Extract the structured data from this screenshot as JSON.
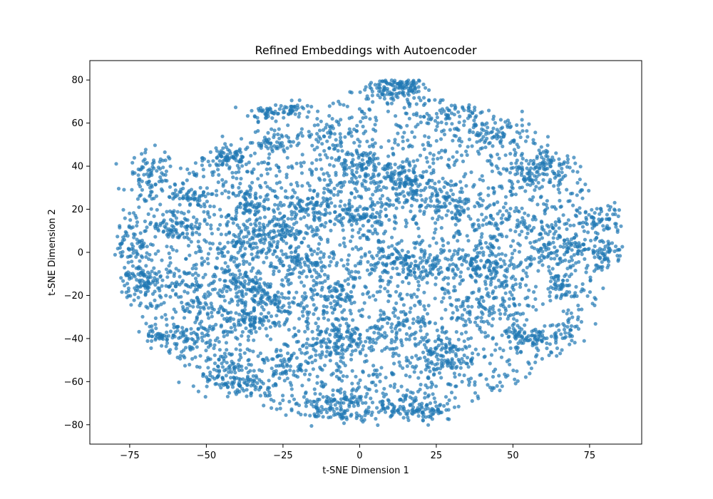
{
  "chart_data": {
    "type": "scatter",
    "title": "Refined Embeddings with Autoencoder",
    "xlabel": "t-SNE Dimension 1",
    "ylabel": "t-SNE Dimension 2",
    "xlim": [
      -88,
      92
    ],
    "ylim": [
      -89,
      89
    ],
    "xticks": [
      -75,
      -50,
      -25,
      0,
      25,
      50,
      75
    ],
    "xtick_labels": [
      "−75",
      "−50",
      "−25",
      "0",
      "25",
      "50",
      "75"
    ],
    "yticks": [
      -80,
      -60,
      -40,
      -20,
      0,
      20,
      40,
      60,
      80
    ],
    "ytick_labels": [
      "−80",
      "−60",
      "−40",
      "−20",
      "0",
      "20",
      "40",
      "60",
      "80"
    ],
    "grid": false,
    "legend": "none",
    "marker_color": "#1f77b4",
    "marker_alpha": 0.7,
    "point_count": 6000,
    "clusters": [
      {
        "center": [
          12,
          77
        ],
        "spread": [
          5,
          3
        ],
        "n": 150
      },
      {
        "center": [
          -30,
          65
        ],
        "spread": [
          3,
          2
        ],
        "n": 40
      },
      {
        "center": [
          -22,
          66
        ],
        "spread": [
          3,
          2
        ],
        "n": 40
      },
      {
        "center": [
          -27,
          52
        ],
        "spread": [
          4,
          3
        ],
        "n": 50
      },
      {
        "center": [
          -10,
          55
        ],
        "spread": [
          4,
          3
        ],
        "n": 40
      },
      {
        "center": [
          -43,
          44
        ],
        "spread": [
          4,
          3
        ],
        "n": 70
      },
      {
        "center": [
          -68,
          35
        ],
        "spread": [
          4,
          6
        ],
        "n": 90
      },
      {
        "center": [
          0,
          38
        ],
        "spread": [
          7,
          5
        ],
        "n": 110
      },
      {
        "center": [
          16,
          32
        ],
        "spread": [
          5,
          6
        ],
        "n": 120
      },
      {
        "center": [
          -37,
          23
        ],
        "spread": [
          3,
          4
        ],
        "n": 60
      },
      {
        "center": [
          -55,
          25
        ],
        "spread": [
          3,
          2
        ],
        "n": 40
      },
      {
        "center": [
          0,
          17
        ],
        "spread": [
          5,
          3
        ],
        "n": 80
      },
      {
        "center": [
          -16,
          20
        ],
        "spread": [
          6,
          5
        ],
        "n": 90
      },
      {
        "center": [
          30,
          22
        ],
        "spread": [
          6,
          6
        ],
        "n": 70
      },
      {
        "center": [
          55,
          35
        ],
        "spread": [
          4,
          3
        ],
        "n": 50
      },
      {
        "center": [
          62,
          40
        ],
        "spread": [
          5,
          3
        ],
        "n": 60
      },
      {
        "center": [
          30,
          64
        ],
        "spread": [
          5,
          3
        ],
        "n": 50
      },
      {
        "center": [
          45,
          55
        ],
        "spread": [
          7,
          4
        ],
        "n": 70
      },
      {
        "center": [
          -70,
          -14
        ],
        "spread": [
          5,
          5
        ],
        "n": 110
      },
      {
        "center": [
          -60,
          13
        ],
        "spread": [
          5,
          4
        ],
        "n": 80
      },
      {
        "center": [
          -38,
          2
        ],
        "spread": [
          6,
          5
        ],
        "n": 100
      },
      {
        "center": [
          -28,
          10
        ],
        "spread": [
          6,
          4
        ],
        "n": 80
      },
      {
        "center": [
          -37,
          -15
        ],
        "spread": [
          4,
          3
        ],
        "n": 60
      },
      {
        "center": [
          -30,
          -22
        ],
        "spread": [
          4,
          3
        ],
        "n": 60
      },
      {
        "center": [
          -35,
          -32
        ],
        "spread": [
          5,
          3
        ],
        "n": 70
      },
      {
        "center": [
          -65,
          -38
        ],
        "spread": [
          3,
          3
        ],
        "n": 40
      },
      {
        "center": [
          -55,
          -40
        ],
        "spread": [
          4,
          3
        ],
        "n": 50
      },
      {
        "center": [
          -45,
          -55
        ],
        "spread": [
          5,
          4
        ],
        "n": 70
      },
      {
        "center": [
          -35,
          -62
        ],
        "spread": [
          4,
          3
        ],
        "n": 50
      },
      {
        "center": [
          -25,
          -53
        ],
        "spread": [
          3,
          3
        ],
        "n": 40
      },
      {
        "center": [
          -8,
          -42
        ],
        "spread": [
          6,
          5
        ],
        "n": 120
      },
      {
        "center": [
          -10,
          -72
        ],
        "spread": [
          7,
          4
        ],
        "n": 100
      },
      {
        "center": [
          10,
          -69
        ],
        "spread": [
          8,
          5
        ],
        "n": 90
      },
      {
        "center": [
          22,
          -74
        ],
        "spread": [
          4,
          2
        ],
        "n": 50
      },
      {
        "center": [
          28,
          -47
        ],
        "spread": [
          5,
          5
        ],
        "n": 90
      },
      {
        "center": [
          12,
          -35
        ],
        "spread": [
          6,
          5
        ],
        "n": 70
      },
      {
        "center": [
          15,
          -5
        ],
        "spread": [
          6,
          5
        ],
        "n": 120
      },
      {
        "center": [
          35,
          -5
        ],
        "spread": [
          6,
          5
        ],
        "n": 90
      },
      {
        "center": [
          45,
          -10
        ],
        "spread": [
          5,
          5
        ],
        "n": 70
      },
      {
        "center": [
          55,
          -40
        ],
        "spread": [
          4,
          3
        ],
        "n": 70
      },
      {
        "center": [
          65,
          -15
        ],
        "spread": [
          3,
          3
        ],
        "n": 40
      },
      {
        "center": [
          68,
          -35
        ],
        "spread": [
          3,
          3
        ],
        "n": 30
      },
      {
        "center": [
          65,
          3
        ],
        "spread": [
          7,
          6
        ],
        "n": 140
      },
      {
        "center": [
          80,
          15
        ],
        "spread": [
          4,
          4
        ],
        "n": 50
      },
      {
        "center": [
          80,
          0
        ],
        "spread": [
          4,
          4
        ],
        "n": 50
      },
      {
        "center": [
          -75,
          5
        ],
        "spread": [
          3,
          6
        ],
        "n": 50
      },
      {
        "center": [
          -10,
          -20
        ],
        "spread": [
          6,
          6
        ],
        "n": 80
      },
      {
        "center": [
          -18,
          -5
        ],
        "spread": [
          5,
          5
        ],
        "n": 70
      },
      {
        "center": [
          40,
          -28
        ],
        "spread": [
          6,
          5
        ],
        "n": 70
      },
      {
        "center": [
          45,
          15
        ],
        "spread": [
          6,
          6
        ],
        "n": 60
      },
      {
        "center": [
          -50,
          -20
        ],
        "spread": [
          6,
          6
        ],
        "n": 70
      }
    ]
  }
}
